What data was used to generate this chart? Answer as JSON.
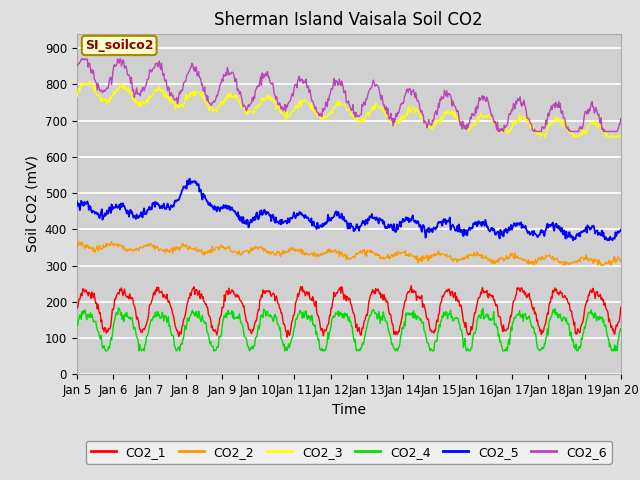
{
  "title": "Sherman Island Vaisala Soil CO2",
  "xlabel": "Time",
  "ylabel": "Soil CO2 (mV)",
  "ylim": [
    0,
    940
  ],
  "yticks": [
    0,
    100,
    200,
    300,
    400,
    500,
    600,
    700,
    800,
    900
  ],
  "x_tick_labels": [
    "Jan 5",
    "Jan 6",
    "Jan 7",
    "Jan 8",
    "Jan 9",
    "Jan 10",
    "Jan 11",
    "Jan 12",
    "Jan 13",
    "Jan 14",
    "Jan 15",
    "Jan 16",
    "Jan 17",
    "Jan 18",
    "Jan 19",
    "Jan 20"
  ],
  "legend_label": "SI_soilco2",
  "series_colors": {
    "CO2_1": "#ff0000",
    "CO2_2": "#ff9900",
    "CO2_3": "#ffff00",
    "CO2_4": "#00dd00",
    "CO2_5": "#0000ff",
    "CO2_6": "#bb44bb"
  },
  "bg_color": "#e0e0e0",
  "plot_bg_color": "#d0d0d0",
  "grid_color": "#ffffff",
  "title_fontsize": 12,
  "axis_label_fontsize": 10,
  "tick_fontsize": 8.5
}
